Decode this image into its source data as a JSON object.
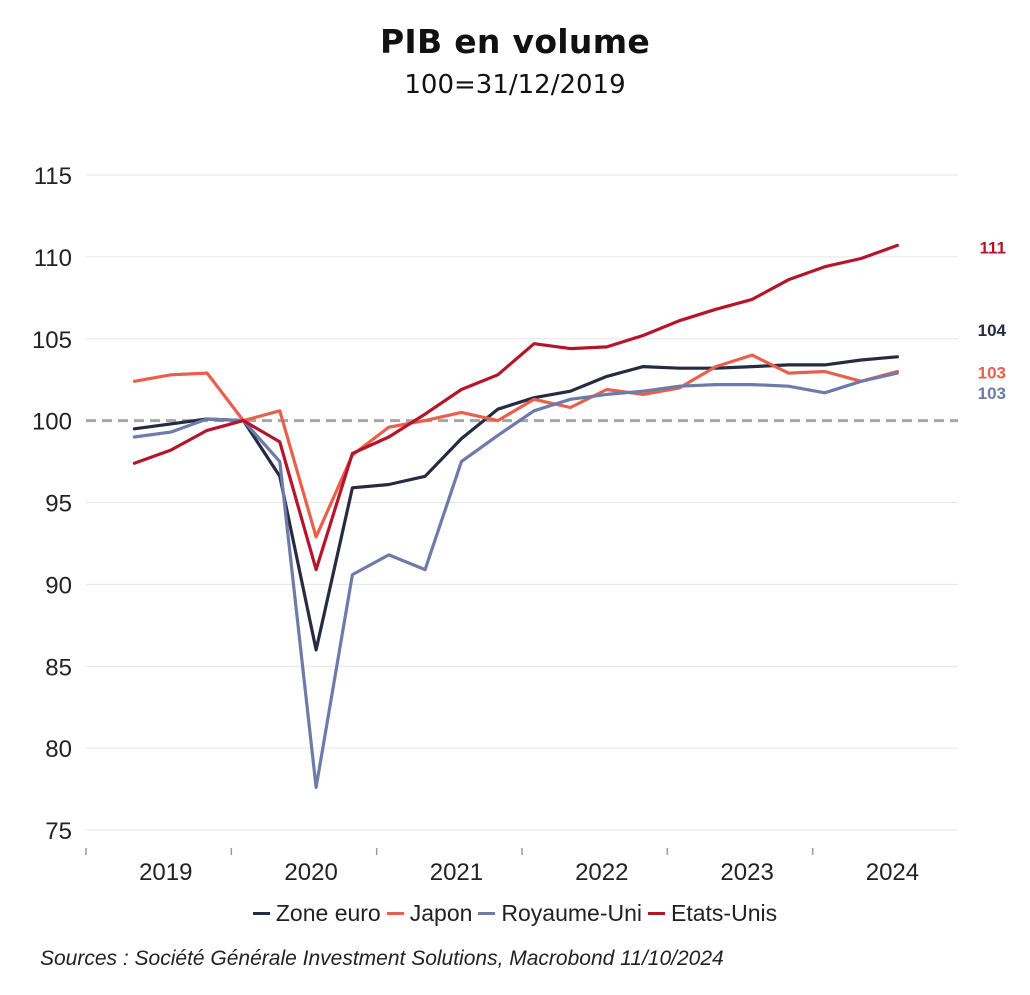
{
  "title": "PIB en volume",
  "subtitle": "100=31/12/2019",
  "source": "Sources : Société Générale Investment Solutions, Macrobond 11/10/2024",
  "chart_data": {
    "type": "line",
    "title": "PIB en volume",
    "subtitle": "100=31/12/2019",
    "ylim": [
      75,
      115
    ],
    "yticks": [
      75,
      80,
      85,
      90,
      95,
      100,
      105,
      110,
      115
    ],
    "ytick_labels": [
      "75",
      "80",
      "85",
      "90",
      "95",
      "100",
      "105",
      "110",
      "115"
    ],
    "xlim": [
      "2018-12",
      "2024-12"
    ],
    "xticks": [
      "2019",
      "2020",
      "2021",
      "2022",
      "2023",
      "2024"
    ],
    "grid": "horizontal",
    "reference_line": {
      "y": 100,
      "style": "dashed",
      "color": "#a6a6a6"
    },
    "legend_position": "bottom",
    "x": [
      "2019-Q1",
      "2019-Q2",
      "2019-Q3",
      "2019-Q4",
      "2020-Q1",
      "2020-Q2",
      "2020-Q3",
      "2020-Q4",
      "2021-Q1",
      "2021-Q2",
      "2021-Q3",
      "2021-Q4",
      "2022-Q1",
      "2022-Q2",
      "2022-Q3",
      "2022-Q4",
      "2023-Q1",
      "2023-Q2",
      "2023-Q3",
      "2023-Q4",
      "2024-Q1",
      "2024-Q2"
    ],
    "series": [
      {
        "name": "Zone euro",
        "color": "#262b42",
        "end_label": "104",
        "values": [
          99.5,
          99.8,
          100.1,
          100.0,
          96.6,
          86.0,
          95.9,
          96.1,
          96.6,
          98.9,
          100.7,
          101.4,
          101.8,
          102.7,
          103.3,
          103.2,
          103.2,
          103.3,
          103.4,
          103.4,
          103.7,
          103.9
        ]
      },
      {
        "name": "Japon",
        "color": "#e8604c",
        "end_label": "103",
        "values": [
          102.4,
          102.8,
          102.9,
          100.0,
          100.6,
          92.9,
          97.9,
          99.6,
          100.0,
          100.5,
          100.0,
          101.3,
          100.8,
          101.9,
          101.6,
          102.0,
          103.3,
          104.0,
          102.9,
          103.0,
          102.4,
          103.0
        ]
      },
      {
        "name": "Royaume-Uni",
        "color": "#6e7baa",
        "end_label": "103",
        "values": [
          99.0,
          99.3,
          100.1,
          100.0,
          97.5,
          77.6,
          90.6,
          91.8,
          90.9,
          97.5,
          99.1,
          100.6,
          101.3,
          101.6,
          101.8,
          102.1,
          102.2,
          102.2,
          102.1,
          101.7,
          102.4,
          102.9
        ]
      },
      {
        "name": "Etats-Unis",
        "color": "#b5152b",
        "end_label": "111",
        "values": [
          97.4,
          98.2,
          99.4,
          100.0,
          98.7,
          90.9,
          98.0,
          99.0,
          100.4,
          101.9,
          102.8,
          104.7,
          104.4,
          104.5,
          105.2,
          106.1,
          106.8,
          107.4,
          108.6,
          109.4,
          109.9,
          110.7
        ]
      }
    ]
  }
}
